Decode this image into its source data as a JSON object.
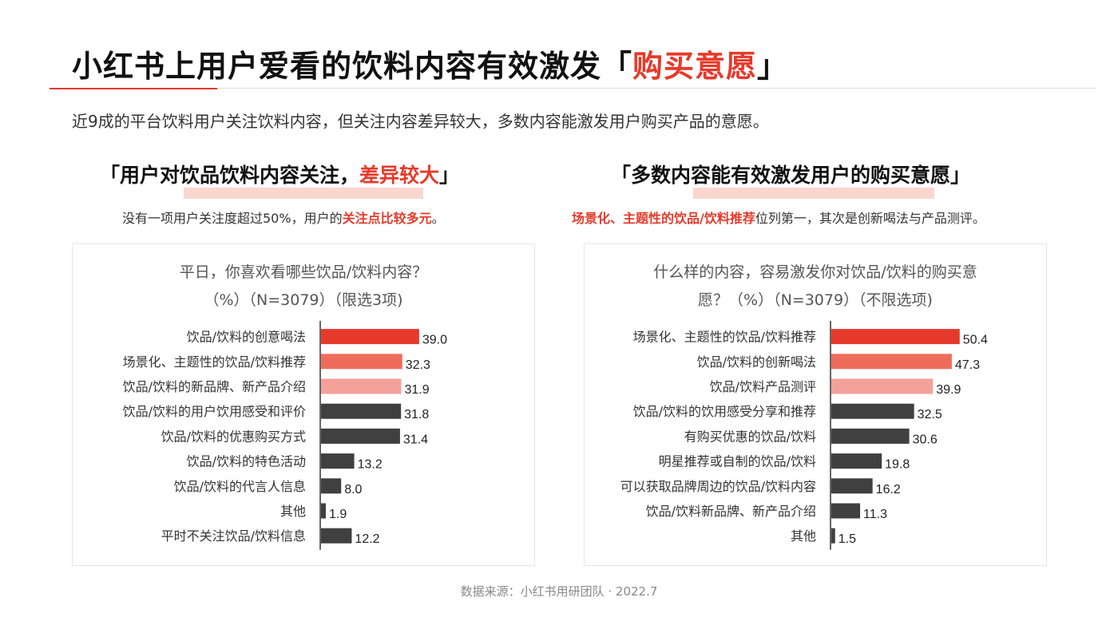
{
  "title": {
    "prefix": "小红书上用户爱看的饮料内容有效激发「",
    "highlight": "购买意愿",
    "suffix": "」"
  },
  "subtitle": "近9成的平台饮料用户关注饮料内容，但关注内容差异较大，多数内容能激发用户购买产品的意愿。",
  "left": {
    "heading_prefix": "「用户对饮品饮料内容关注，",
    "heading_highlight": "差异较大",
    "heading_suffix": "」",
    "sub_prefix": "没有一项用户关注度超过50%，用户的",
    "sub_highlight": "关注点比较多元",
    "sub_suffix": "。"
  },
  "right": {
    "heading": "「多数内容能有效激发用户的购买意愿」",
    "sub_highlight": "场景化、主题性的饮品/饮料推荐",
    "sub_suffix": "位列第一，其次是创新喝法与产品测评。"
  },
  "colors": {
    "bar1": "#e53a2b",
    "bar2": "#ee6d5a",
    "bar3": "#f4a19a",
    "bar_other": "#404040"
  },
  "chart_data": [
    {
      "type": "bar",
      "orientation": "horizontal",
      "title_line1": "平日，你喜欢看哪些饮品/饮料内容？",
      "title_line2": "（%）（N=3079）（限选3项)",
      "categories": [
        "饮品/饮料的创意喝法",
        "场景化、主题性的饮品/饮料推荐",
        "饮品/饮料的新品牌、新产品介绍",
        "饮品/饮料的用户饮用感受和评价",
        "饮品/饮料的优惠购买方式",
        "饮品/饮料的特色活动",
        "饮品/饮料的代言人信息",
        "其他",
        "平时不关注饮品/饮料信息"
      ],
      "values": [
        39.0,
        32.3,
        31.9,
        31.8,
        31.4,
        13.2,
        8.0,
        1.9,
        12.2
      ],
      "labels": [
        "39.0",
        "32.3",
        "31.9",
        "31.8",
        "31.4",
        "13.2",
        "8.0",
        "1.9",
        "12.2"
      ]
    },
    {
      "type": "bar",
      "orientation": "horizontal",
      "title_line1": "什么样的内容，容易激发你对饮品/饮料的购买意",
      "title_line2": "愿？（%）（N=3079）（不限选项)",
      "categories": [
        "场景化、主题性的饮品/饮料推荐",
        "饮品/饮料的创新喝法",
        "饮品/饮料产品测评",
        "饮品/饮料的饮用感受分享和推荐",
        "有购买优惠的饮品/饮料",
        "明星推荐或自制的饮品/饮料",
        "可以获取品牌周边的饮品/饮料内容",
        "饮品/饮料新品牌、新产品介绍",
        "其他"
      ],
      "values": [
        50.4,
        47.3,
        39.9,
        32.5,
        30.6,
        19.8,
        16.2,
        11.3,
        1.5
      ],
      "labels": [
        "50.4",
        "47.3",
        "39.9",
        "32.5",
        "30.6",
        "19.8",
        "16.2",
        "11.3",
        "1.5"
      ]
    }
  ],
  "source": "数据来源：小红书用研团队 · 2022.7"
}
